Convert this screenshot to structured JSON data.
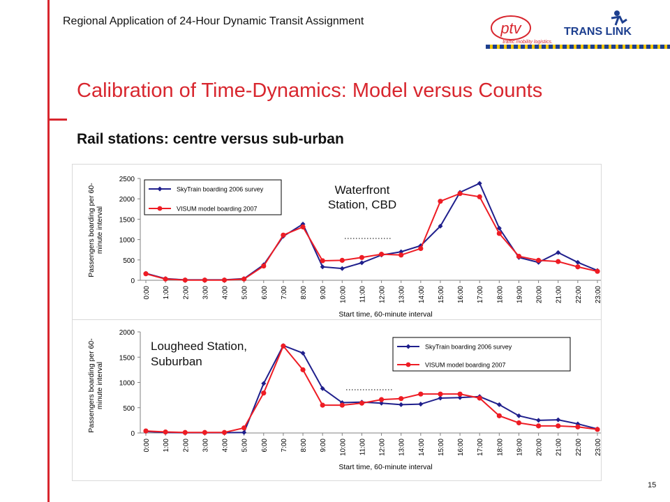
{
  "header": {
    "title": "Regional Application of 24-Hour Dynamic Transit Assignment",
    "logo_ptv_text": "ptv",
    "logo_ptv_tagline": "traffic mobility logistics.",
    "logo_translink_text": "TRANS LINK"
  },
  "slide": {
    "title": "Calibration of Time-Dynamics: Model versus Counts",
    "subtitle": "Rail stations: centre versus sub-urban",
    "page_number": "15"
  },
  "colors": {
    "accent_red": "#d8262e",
    "series_survey": "#1f1f8c",
    "series_model": "#ee1c24"
  },
  "chart_data": [
    {
      "type": "line",
      "annotation": "Waterfront Station, CBD",
      "annotation_lines": [
        "Waterfront",
        "Station, CBD"
      ],
      "xlabel": "Start time, 60-minute interval",
      "ylabel": "Passengers boarding per 60-minute interval",
      "ylabel_lines": [
        "Passengers boarding per 60-",
        "minute interval"
      ],
      "ylim": [
        0,
        2500
      ],
      "yticks": [
        0,
        500,
        1000,
        1500,
        2000,
        2500
      ],
      "grid": false,
      "legend_position": "top-left",
      "categories": [
        "0:00",
        "1:00",
        "2:00",
        "3:00",
        "4:00",
        "5:00",
        "6:00",
        "7:00",
        "8:00",
        "9:00",
        "10:00",
        "11:00",
        "12:00",
        "13:00",
        "14:00",
        "15:00",
        "16:00",
        "17:00",
        "18:00",
        "19:00",
        "20:00",
        "21:00",
        "22:00",
        "23:00"
      ],
      "series": [
        {
          "name": "SkyTrain boarding 2006 survey",
          "color": "#1f1f8c",
          "marker": "diamond",
          "values": [
            170,
            40,
            10,
            10,
            10,
            40,
            380,
            1080,
            1380,
            330,
            290,
            430,
            620,
            700,
            850,
            1330,
            2160,
            2380,
            1280,
            560,
            440,
            680,
            440,
            240
          ]
        },
        {
          "name": "VISUM model boarding 2007",
          "color": "#ee1c24",
          "marker": "circle",
          "values": [
            160,
            30,
            5,
            5,
            5,
            30,
            350,
            1110,
            1310,
            480,
            490,
            560,
            640,
            620,
            780,
            1940,
            2130,
            2050,
            1150,
            590,
            490,
            460,
            330,
            220
          ]
        }
      ]
    },
    {
      "type": "line",
      "annotation": "Lougheed Station, Suburban",
      "annotation_lines": [
        "Lougheed Station,",
        "Suburban"
      ],
      "xlabel": "Start time, 60-minute interval",
      "ylabel": "Passengers boarding per 60-minute interval",
      "ylabel_lines": [
        "Passengers boarding per 60-",
        "minute interval"
      ],
      "ylim": [
        0,
        2000
      ],
      "yticks": [
        0,
        500,
        1000,
        1500,
        2000
      ],
      "grid": false,
      "legend_position": "top-right",
      "categories": [
        "0:00",
        "1:00",
        "2:00",
        "3:00",
        "4:00",
        "5:00",
        "6:00",
        "7:00",
        "8:00",
        "9:00",
        "10:00",
        "11:00",
        "12:00",
        "13:00",
        "14:00",
        "15:00",
        "16:00",
        "17:00",
        "18:00",
        "19:00",
        "20:00",
        "21:00",
        "22:00",
        "23:00"
      ],
      "series": [
        {
          "name": "SkyTrain boarding 2006 survey",
          "color": "#1f1f8c",
          "marker": "diamond",
          "values": [
            30,
            10,
            5,
            5,
            5,
            10,
            980,
            1730,
            1580,
            880,
            600,
            610,
            590,
            560,
            570,
            690,
            700,
            720,
            560,
            340,
            250,
            260,
            180,
            80
          ]
        },
        {
          "name": "VISUM model boarding 2007",
          "color": "#ee1c24",
          "marker": "circle",
          "values": [
            40,
            20,
            10,
            10,
            10,
            100,
            790,
            1720,
            1250,
            550,
            550,
            590,
            660,
            680,
            770,
            770,
            770,
            690,
            340,
            200,
            140,
            140,
            120,
            70
          ]
        }
      ]
    }
  ]
}
